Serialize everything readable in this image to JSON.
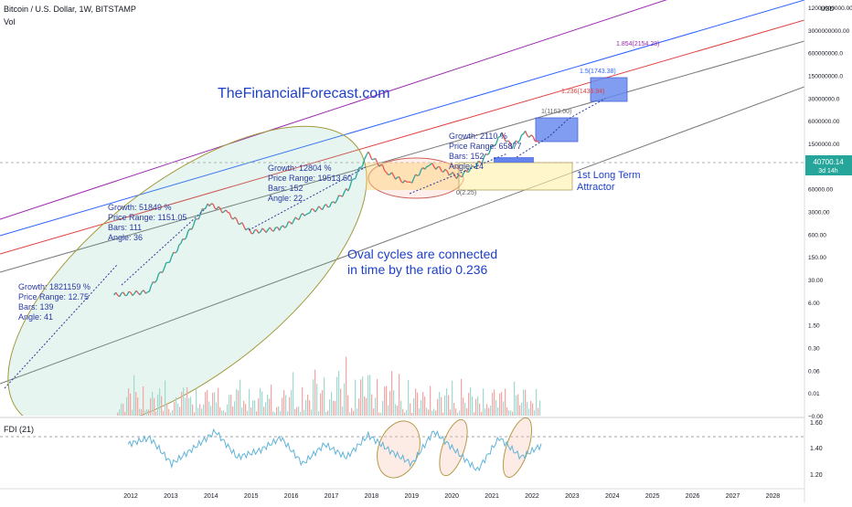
{
  "header": {
    "title": "Bitcoin / U.S. Dollar, 1W, BITSTAMP",
    "subtitle": "Vol",
    "indicator": "FDI (21)"
  },
  "site_label": "TheFinancialForecast.com",
  "oscillation_note": [
    "Oval cycles are connected",
    "in time by the ratio 0.236"
  ],
  "attractor_label": [
    "1st Long Term",
    "Attractor"
  ],
  "attractor_value_label": "0(2.25)",
  "annotations": [
    {
      "lines": [
        "Growth: 1821159 %",
        "Price Range: 12.75",
        "Bars: 139",
        "Angle: 41"
      ]
    },
    {
      "lines": [
        "Growth: 51849 %",
        "Price Range: 1151.05",
        "Bars: 111",
        "Angle: 36"
      ]
    },
    {
      "lines": [
        "Growth: 12804 %",
        "Price Range: 19513.60",
        "Bars: 152",
        "Angle: 22"
      ]
    },
    {
      "lines": [
        "Growth: 2110 %",
        "Price Range: 65877",
        "Bars: 152",
        "Angle: 14"
      ]
    }
  ],
  "fib_labels": [
    {
      "text": "1(1163.00)",
      "color": "#6b6b6b"
    },
    {
      "text": "1.236(1436.94)",
      "color": "#e04040"
    },
    {
      "text": "1.5(1743.38)",
      "color": "#2962ff"
    },
    {
      "text": "1.854(2154.28)",
      "color": "#9c27b0"
    }
  ],
  "price_axis": {
    "currency": "USD",
    "ticks": [
      "12000000000.00",
      "3000000000.00",
      "600000000.0",
      "150000000.0",
      "30000000.0",
      "6000000.00",
      "1500000.00",
      "300000.00",
      "60000.00",
      "3000.00",
      "600.00",
      "150.00",
      "30.00",
      "6.00",
      "1.50",
      "0.30",
      "0.06",
      "0.01",
      "−0.00"
    ],
    "current_price": "40700.14",
    "current_sub": "3d 14h",
    "current_color": "#26a69a"
  },
  "fdi_axis": {
    "ticks": [
      "1.60",
      "1.40",
      "1.20"
    ]
  },
  "time_axis": {
    "ticks": [
      "2012",
      "2013",
      "2014",
      "2015",
      "2016",
      "2017",
      "2018",
      "2019",
      "2020",
      "2021",
      "2022",
      "2023",
      "2024",
      "2025",
      "2026",
      "2027",
      "2028"
    ]
  },
  "chart_data": {
    "type": "line",
    "title": "Bitcoin / U.S. Dollar, 1W, BITSTAMP",
    "y_scale": "log",
    "x_range": [
      "2011",
      "2029"
    ],
    "series": [
      {
        "name": "Bitcoin / U.S. Dollar",
        "x": [
          "2011-08",
          "2012-06",
          "2013-04",
          "2013-12",
          "2014-06",
          "2015-01",
          "2015-10",
          "2016-06",
          "2017-01",
          "2017-06",
          "2017-12",
          "2018-06",
          "2018-12",
          "2019-06",
          "2020-03",
          "2020-10",
          "2021-04",
          "2021-07",
          "2021-11",
          "2022-03"
        ],
        "y": [
          5,
          6,
          100,
          1100,
          600,
          200,
          250,
          650,
          1000,
          2500,
          19500,
          6500,
          3300,
          11000,
          5000,
          13000,
          60000,
          30000,
          66000,
          40700
        ]
      },
      {
        "name": "FDI (21)",
        "y_range": [
          1.2,
          1.6
        ],
        "values": [
          1.45,
          1.5,
          1.3,
          1.42,
          1.55,
          1.35,
          1.4,
          1.5,
          1.3,
          1.45,
          1.35,
          1.52,
          1.4,
          1.3,
          1.55,
          1.4,
          1.25,
          1.5,
          1.35,
          1.45
        ]
      }
    ],
    "grid": false
  }
}
